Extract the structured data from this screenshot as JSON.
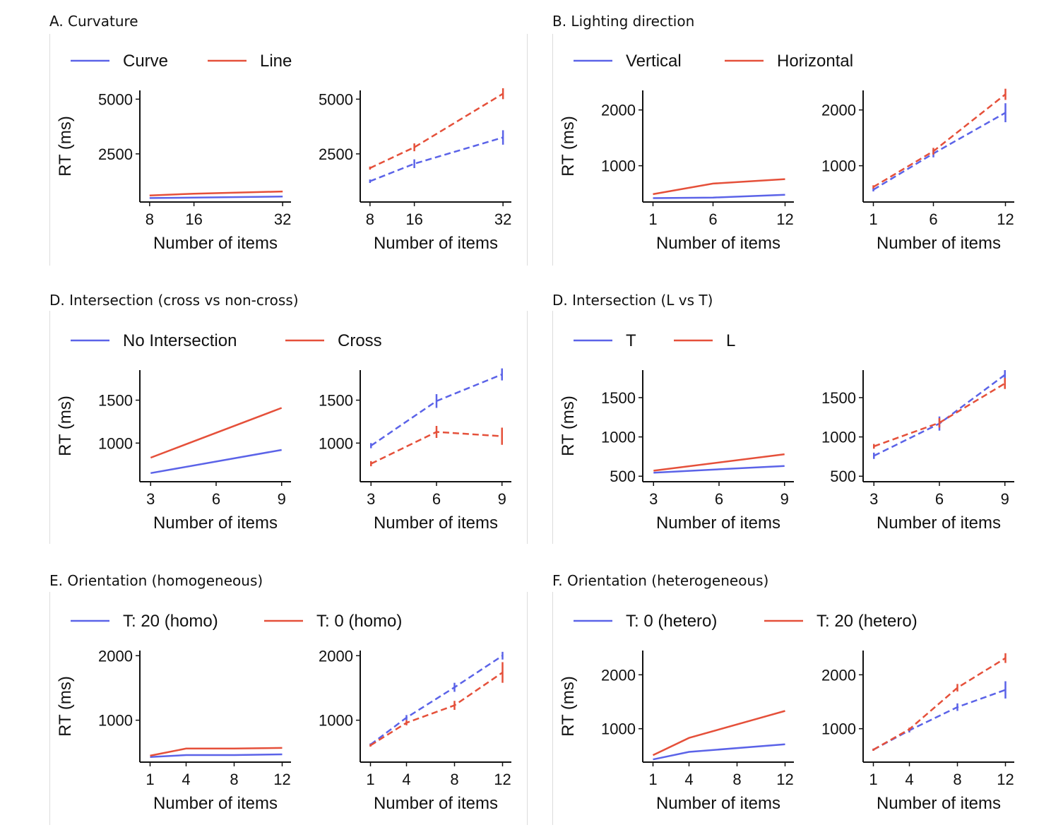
{
  "colors": {
    "blue": "#5b63e8",
    "red": "#e5503a",
    "axis": "#111111"
  },
  "chart_data": [
    {
      "id": "A",
      "title": "A.  Curvature",
      "type": "line",
      "legend": [
        {
          "name": "Curve",
          "color": "#5b63e8"
        },
        {
          "name": "Line",
          "color": "#e5503a"
        }
      ],
      "xlabel": "Number of items",
      "ylabel": "RT (ms)",
      "xticks": [
        8,
        16,
        32
      ],
      "xlim": [
        7,
        33
      ],
      "yticks": [
        2500,
        5000
      ],
      "ylim": [
        300,
        5400
      ],
      "left": {
        "style": "solid",
        "series": [
          {
            "name": "Curve",
            "x": [
              8,
              16,
              32
            ],
            "y": [
              480,
              500,
              550
            ]
          },
          {
            "name": "Line",
            "x": [
              8,
              16,
              32
            ],
            "y": [
              600,
              680,
              780
            ]
          }
        ]
      },
      "right": {
        "style": "dashed",
        "series": [
          {
            "name": "Curve",
            "x": [
              8,
              16,
              32
            ],
            "y": [
              1250,
              2050,
              3250
            ],
            "err": [
              80,
              200,
              330
            ]
          },
          {
            "name": "Line",
            "x": [
              8,
              16,
              32
            ],
            "y": [
              1850,
              2800,
              5250
            ],
            "err": [
              70,
              180,
              250
            ]
          }
        ]
      }
    },
    {
      "id": "B",
      "title": "B.  Lighting direction",
      "type": "line",
      "legend": [
        {
          "name": "Vertical",
          "color": "#5b63e8"
        },
        {
          "name": "Horizontal",
          "color": "#e5503a"
        }
      ],
      "xlabel": "Number of items",
      "ylabel": "RT (ms)",
      "xticks": [
        1,
        6,
        12
      ],
      "xlim": [
        0.5,
        12.5
      ],
      "yticks": [
        1000,
        2000
      ],
      "ylim": [
        350,
        2350
      ],
      "left": {
        "style": "solid",
        "series": [
          {
            "name": "Vertical",
            "x": [
              1,
              6,
              12
            ],
            "y": [
              420,
              430,
              480
            ]
          },
          {
            "name": "Horizontal",
            "x": [
              1,
              6,
              12
            ],
            "y": [
              490,
              680,
              760
            ]
          }
        ]
      },
      "right": {
        "style": "dashed",
        "series": [
          {
            "name": "Vertical",
            "x": [
              1,
              6,
              12
            ],
            "y": [
              570,
              1220,
              1950
            ],
            "err": [
              30,
              70,
              170
            ]
          },
          {
            "name": "Horizontal",
            "x": [
              1,
              6,
              12
            ],
            "y": [
              620,
              1260,
              2280
            ],
            "err": [
              30,
              60,
              100
            ]
          }
        ]
      }
    },
    {
      "id": "C",
      "title": "D.  Intersection (cross vs non-cross)",
      "type": "line",
      "legend": [
        {
          "name": "No Intersection",
          "color": "#5b63e8"
        },
        {
          "name": "Cross",
          "color": "#e5503a"
        }
      ],
      "xlabel": "Number of items",
      "ylabel": "RT (ms)",
      "xticks": [
        3,
        6,
        9
      ],
      "xlim": [
        2.7,
        9.3
      ],
      "yticks": [
        1000,
        1500
      ],
      "ylim": [
        550,
        1850
      ],
      "left": {
        "style": "solid",
        "series": [
          {
            "name": "No Intersection",
            "x": [
              3,
              9
            ],
            "y": [
              650,
              920
            ]
          },
          {
            "name": "Cross",
            "x": [
              3,
              9
            ],
            "y": [
              830,
              1410
            ]
          }
        ]
      },
      "right": {
        "style": "dashed",
        "series": [
          {
            "name": "No Intersection",
            "x": [
              3,
              6,
              9
            ],
            "y": [
              970,
              1490,
              1800
            ],
            "err": [
              30,
              80,
              70
            ]
          },
          {
            "name": "Cross",
            "x": [
              3,
              6,
              9
            ],
            "y": [
              760,
              1130,
              1080
            ],
            "err": [
              30,
              70,
              100
            ]
          }
        ]
      }
    },
    {
      "id": "D",
      "title": "D.  Intersection (L vs T)",
      "type": "line",
      "legend": [
        {
          "name": "T",
          "color": "#5b63e8"
        },
        {
          "name": "L",
          "color": "#e5503a"
        }
      ],
      "xlabel": "Number of items",
      "ylabel": "RT (ms)",
      "xticks": [
        3,
        6,
        9
      ],
      "xlim": [
        2.7,
        9.3
      ],
      "yticks": [
        500,
        1000,
        1500
      ],
      "ylim": [
        430,
        1850
      ],
      "left": {
        "style": "solid",
        "series": [
          {
            "name": "T",
            "x": [
              3,
              9
            ],
            "y": [
              545,
              630
            ]
          },
          {
            "name": "L",
            "x": [
              3,
              9
            ],
            "y": [
              570,
              780
            ]
          }
        ]
      },
      "right": {
        "style": "dashed",
        "series": [
          {
            "name": "T",
            "x": [
              3,
              6,
              9
            ],
            "y": [
              760,
              1170,
              1790
            ],
            "err": [
              40,
              90,
              60
            ]
          },
          {
            "name": "L",
            "x": [
              3,
              6,
              9
            ],
            "y": [
              880,
              1180,
              1680
            ],
            "err": [
              30,
              60,
              70
            ]
          }
        ]
      }
    },
    {
      "id": "E",
      "title": "E.  Orientation (homogeneous)",
      "type": "line",
      "legend": [
        {
          "name": "T: 20 (homo)",
          "color": "#5b63e8"
        },
        {
          "name": "T: 0 (homo)",
          "color": "#e5503a"
        }
      ],
      "xlabel": "Number of items",
      "ylabel": "RT (ms)",
      "xticks": [
        1,
        4,
        8,
        12
      ],
      "xlim": [
        0.5,
        12.5
      ],
      "yticks": [
        1000,
        2000
      ],
      "ylim": [
        350,
        2080
      ],
      "left": {
        "style": "solid",
        "series": [
          {
            "name": "T: 20 (homo)",
            "x": [
              1,
              4,
              8,
              12
            ],
            "y": [
              430,
              460,
              460,
              470
            ]
          },
          {
            "name": "T: 0 (homo)",
            "x": [
              1,
              4,
              8,
              12
            ],
            "y": [
              450,
              560,
              560,
              570
            ]
          }
        ]
      },
      "right": {
        "style": "dashed",
        "series": [
          {
            "name": "T: 20 (homo)",
            "x": [
              1,
              4,
              8,
              12
            ],
            "y": [
              620,
              1040,
              1510,
              2000
            ],
            "err": [
              20,
              40,
              70,
              60
            ]
          },
          {
            "name": "T: 0 (homo)",
            "x": [
              1,
              4,
              8,
              12
            ],
            "y": [
              610,
              960,
              1230,
              1740
            ],
            "err": [
              20,
              40,
              70,
              160
            ]
          }
        ]
      }
    },
    {
      "id": "F",
      "title": "F.  Orientation (heterogeneous)",
      "type": "line",
      "legend": [
        {
          "name": "T: 0 (hetero)",
          "color": "#5b63e8"
        },
        {
          "name": "T: 20 (hetero)",
          "color": "#e5503a"
        }
      ],
      "xlabel": "Number of items",
      "ylabel": "RT (ms)",
      "xticks": [
        1,
        4,
        8,
        12
      ],
      "xlim": [
        0.5,
        12.5
      ],
      "yticks": [
        1000,
        2000
      ],
      "ylim": [
        380,
        2450
      ],
      "left": {
        "style": "solid",
        "series": [
          {
            "name": "T: 0 (hetero)",
            "x": [
              1,
              4,
              12
            ],
            "y": [
              430,
              570,
              710
            ]
          },
          {
            "name": "T: 20 (hetero)",
            "x": [
              1,
              4,
              12
            ],
            "y": [
              510,
              830,
              1330
            ]
          }
        ]
      },
      "right": {
        "style": "dashed",
        "series": [
          {
            "name": "T: 0 (hetero)",
            "x": [
              1,
              4,
              8,
              12
            ],
            "y": [
              610,
              970,
              1400,
              1720
            ],
            "err": [
              20,
              40,
              70,
              160
            ]
          },
          {
            "name": "T: 20 (hetero)",
            "x": [
              1,
              4,
              8,
              12
            ],
            "y": [
              610,
              990,
              1760,
              2310
            ],
            "err": [
              20,
              30,
              70,
              90
            ]
          }
        ]
      }
    }
  ]
}
